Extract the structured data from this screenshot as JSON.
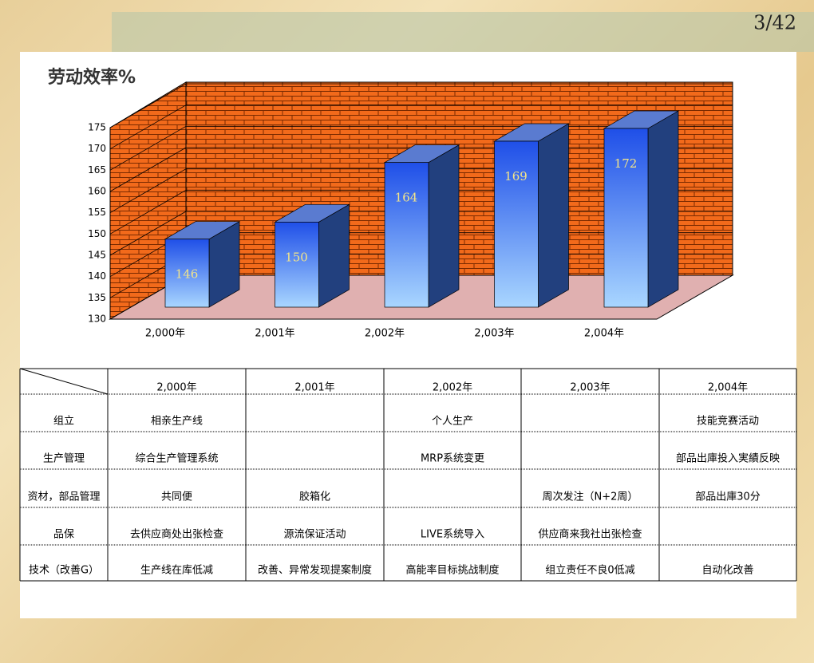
{
  "page_number": "3/42",
  "chart_data": {
    "type": "bar",
    "title": "劳动效率%",
    "categories": [
      "2,000年",
      "2,001年",
      "2,002年",
      "2,003年",
      "2,004年"
    ],
    "values": [
      146,
      150,
      164,
      169,
      172
    ],
    "color": "#3a6cf0",
    "ylim": [
      130,
      175
    ],
    "yticks": [
      130,
      135,
      140,
      145,
      150,
      155,
      160,
      165,
      170,
      175
    ],
    "grid": true
  },
  "table": {
    "header": [
      "2,000年",
      "2,001年",
      "2,002年",
      "2,003年",
      "2,004年"
    ],
    "rows": [
      {
        "label": "组立",
        "cells": [
          "相亲生产线",
          null,
          "个人生产",
          null,
          "技能竞赛活动"
        ]
      },
      {
        "label": "生产管理",
        "cells": [
          "综合生产管理系统",
          null,
          "MRP系统变更",
          null,
          "部品出庫投入実績反映"
        ]
      },
      {
        "label": "资材，部品管理",
        "cells": [
          "共同便",
          "胶箱化",
          null,
          "周次发注（N+2周）",
          "部品出庫30分"
        ]
      },
      {
        "label": "品保",
        "cells": [
          "去供应商处出张检查",
          "源流保证活动",
          "LIVE系统导入",
          "供应商来我社出张检查",
          null
        ]
      },
      {
        "label": "技术（改善G）",
        "cells": [
          "生产线在库低减",
          "改善、异常发现提案制度",
          "高能率目标挑战制度",
          "组立责任不良0低减",
          "自动化改善"
        ]
      }
    ]
  }
}
